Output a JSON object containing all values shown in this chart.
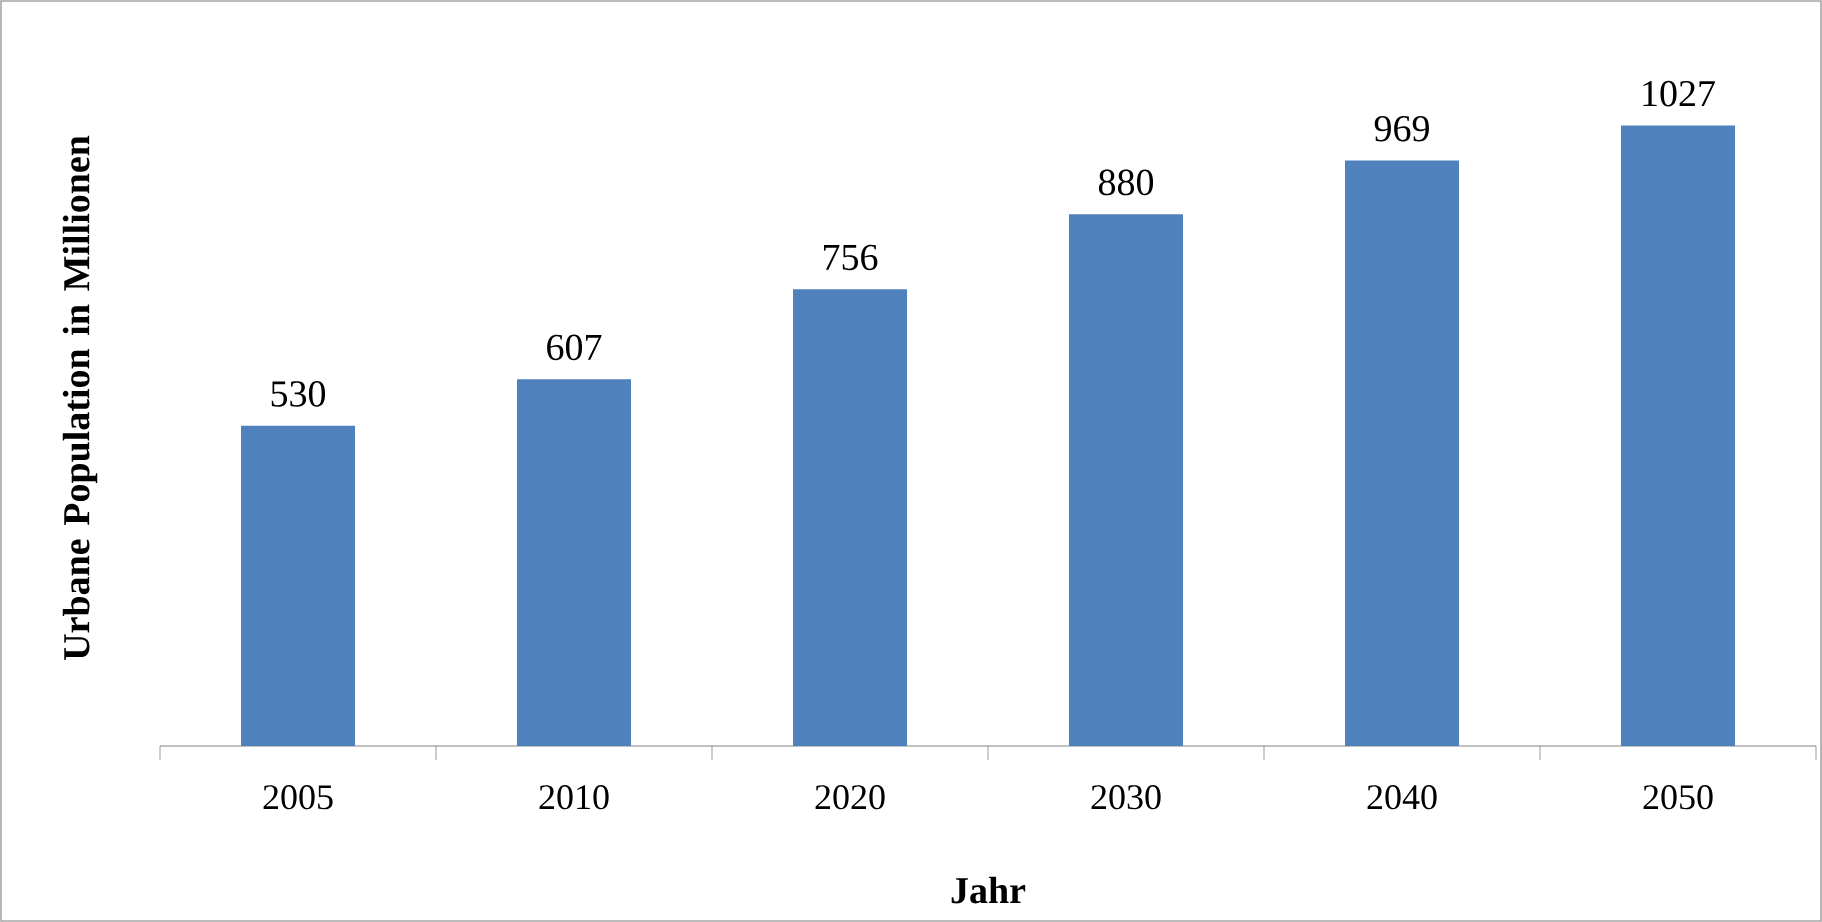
{
  "chart_data": {
    "type": "bar",
    "xlabel": "Jahr",
    "ylabel": "Urbane Population in Millionen",
    "categories": [
      "2005",
      "2010",
      "2020",
      "2030",
      "2040",
      "2050"
    ],
    "values": [
      530,
      607,
      756,
      880,
      969,
      1027
    ],
    "color": "#4f81bd",
    "data_labels": true
  }
}
